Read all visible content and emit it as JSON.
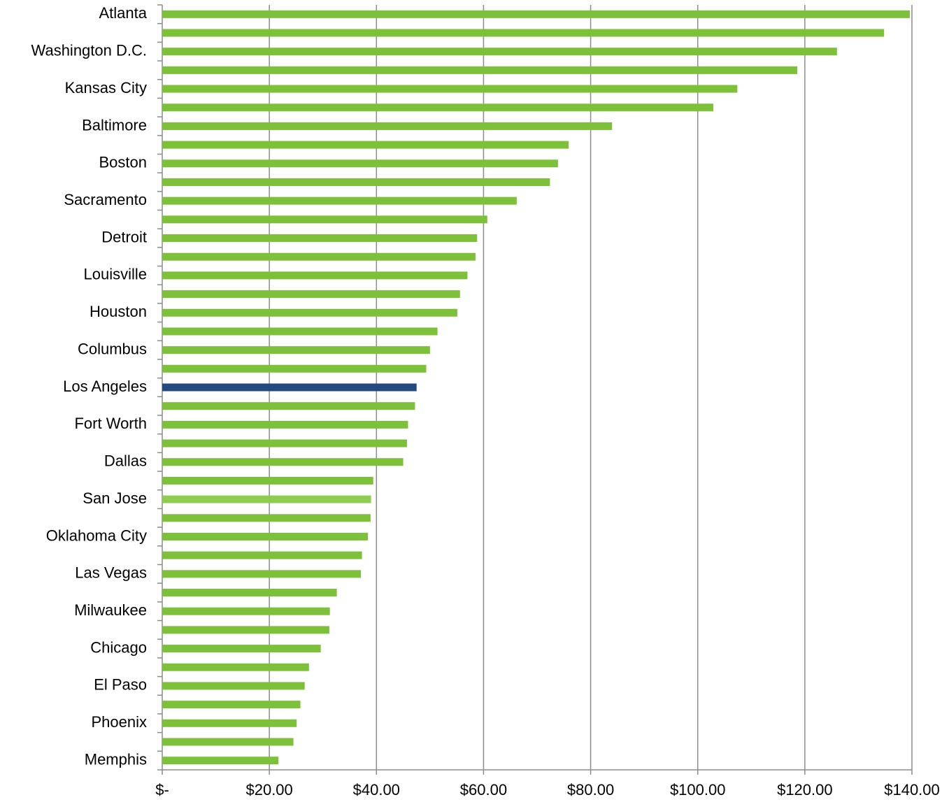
{
  "chart_data": {
    "type": "barh",
    "categories": [
      "Atlanta",
      null,
      "Washington D.C.",
      null,
      "Kansas City",
      null,
      "Baltimore",
      null,
      "Boston",
      null,
      "Sacramento",
      null,
      "Detroit",
      null,
      "Louisville",
      null,
      "Houston",
      null,
      "Columbus",
      null,
      "Los Angeles",
      null,
      "Fort Worth",
      null,
      "Dallas",
      null,
      "San Jose",
      null,
      "Oklahoma City",
      null,
      "Las Vegas",
      null,
      "Milwaukee",
      null,
      "Chicago",
      null,
      "El Paso",
      null,
      "Phoenix",
      null,
      "Memphis"
    ],
    "values": [
      139.6,
      134.8,
      126.0,
      118.6,
      107.4,
      102.9,
      84.0,
      75.9,
      73.9,
      72.4,
      66.2,
      60.7,
      58.8,
      58.5,
      57.0,
      55.6,
      55.1,
      51.4,
      50.0,
      49.3,
      47.5,
      47.2,
      45.9,
      45.7,
      45.0,
      39.4,
      39.0,
      38.9,
      38.4,
      37.3,
      37.1,
      32.6,
      31.3,
      31.2,
      29.6,
      27.4,
      26.6,
      25.8,
      25.1,
      24.5,
      21.7
    ],
    "colors": [
      "#7dc03a",
      "#7dc03a",
      "#7dc03a",
      "#7dc03a",
      "#7dc03a",
      "#7dc03a",
      "#7dc03a",
      "#7dc03a",
      "#7dc03a",
      "#7dc03a",
      "#7dc03a",
      "#7dc03a",
      "#7dc03a",
      "#7dc03a",
      "#7dc03a",
      "#7dc03a",
      "#7dc03a",
      "#7dc03a",
      "#7dc03a",
      "#7dc03a",
      "#234a7e",
      "#7dc03a",
      "#7dc03a",
      "#7dc03a",
      "#7dc03a",
      "#7dc03a",
      "#8fcc52",
      "#7dc03a",
      "#7dc03a",
      "#7dc03a",
      "#7dc03a",
      "#7dc03a",
      "#7dc03a",
      "#7dc03a",
      "#7dc03a",
      "#7dc03a",
      "#7dc03a",
      "#7dc03a",
      "#7dc03a",
      "#7dc03a",
      "#7dc03a"
    ],
    "xlim": [
      0,
      140
    ],
    "xticks": [
      {
        "value": 0,
        "label": "$-"
      },
      {
        "value": 20,
        "label": "$20.00"
      },
      {
        "value": 40,
        "label": "$40.00"
      },
      {
        "value": 60,
        "label": "$60.00"
      },
      {
        "value": 80,
        "label": "$80.00"
      },
      {
        "value": 100,
        "label": "$100.00"
      },
      {
        "value": 120,
        "label": "$120.00"
      },
      {
        "value": 140,
        "label": "$140.00"
      }
    ],
    "grid": true
  }
}
